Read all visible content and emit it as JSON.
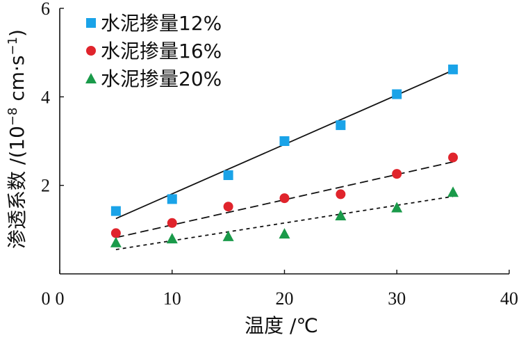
{
  "chart_data": {
    "type": "scatter",
    "title": "",
    "xlabel": "温度 /℃",
    "ylabel_main": "渗透系数 /(10",
    "ylabel_exp": "−8",
    "ylabel_unit": " cm·s",
    "ylabel_unit_exp": "−1",
    "ylabel_close": ")",
    "xlim": [
      0,
      40
    ],
    "ylim": [
      0,
      6
    ],
    "xticks": [
      0,
      10,
      20,
      30,
      40
    ],
    "yticks": [
      2,
      4,
      6
    ],
    "grid": false,
    "legend_position": "top-left",
    "series": [
      {
        "name": "水泥掺量12%",
        "marker": "square",
        "color": "#1aa3e8",
        "line_style": "solid",
        "x": [
          5,
          10,
          15,
          20,
          25,
          30,
          35
        ],
        "y": [
          1.42,
          1.69,
          2.23,
          3.0,
          3.36,
          4.06,
          4.62
        ],
        "fit": {
          "x": [
            5,
            35
          ],
          "y": [
            1.25,
            4.6
          ]
        }
      },
      {
        "name": "水泥掺量16%",
        "marker": "circle",
        "color": "#e0242c",
        "line_style": "dashed",
        "x": [
          5,
          10,
          15,
          20,
          25,
          30,
          35
        ],
        "y": [
          0.92,
          1.15,
          1.52,
          1.71,
          1.8,
          2.26,
          2.63
        ],
        "fit": {
          "x": [
            5,
            35
          ],
          "y": [
            0.82,
            2.53
          ]
        }
      },
      {
        "name": "水泥掺量20%",
        "marker": "triangle",
        "color": "#1a9a4a",
        "line_style": "dotted",
        "x": [
          5,
          10,
          15,
          20,
          25,
          30,
          35
        ],
        "y": [
          0.71,
          0.8,
          0.85,
          0.91,
          1.32,
          1.5,
          1.85
        ],
        "fit": {
          "x": [
            5,
            35
          ],
          "y": [
            0.55,
            1.75
          ]
        }
      }
    ]
  }
}
